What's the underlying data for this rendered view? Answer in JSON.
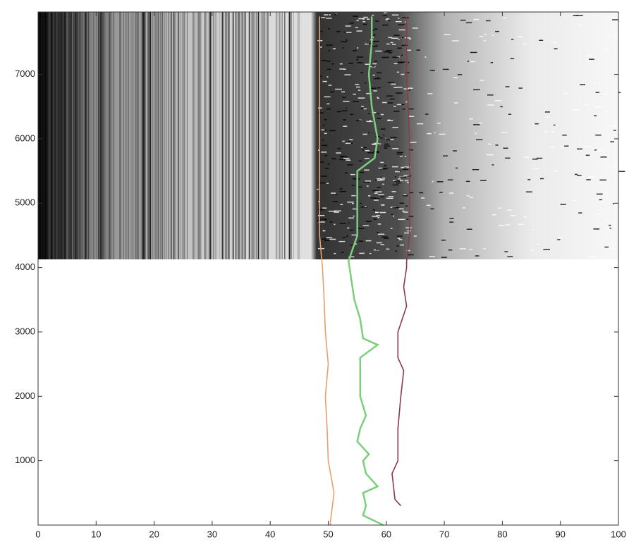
{
  "chart_data": {
    "type": "line",
    "xlim": [
      0,
      100
    ],
    "xticks": [
      0,
      10,
      20,
      30,
      40,
      50,
      60,
      70,
      80,
      90,
      100
    ],
    "ylim": [
      0,
      7970
    ],
    "yticks": [
      1000,
      2000,
      3000,
      4000,
      5000,
      6000,
      7000
    ],
    "series": [
      {
        "color": "#e8a070",
        "x": [
          50.3,
          51,
          50,
          49.8,
          49.5,
          50,
          49.5,
          49.3,
          49,
          48.5,
          48.5,
          48.5,
          48.5,
          48.5
        ],
        "y": [
          0,
          500,
          1000,
          1500,
          2000,
          2500,
          3000,
          3500,
          4000,
          4500,
          5000,
          6000,
          7000,
          7900
        ]
      },
      {
        "color": "#7ccf7c",
        "x": [
          59.5,
          56,
          56.5,
          56,
          58.5,
          56.5,
          56,
          57,
          55,
          55.5,
          56.5,
          55.5,
          55.5,
          55.5,
          58.5,
          56,
          55.5,
          54.5,
          54,
          53.5,
          55,
          55,
          55,
          58,
          58.5,
          57.5,
          57,
          57.5,
          57.5
        ],
        "y": [
          0,
          150,
          300,
          500,
          600,
          800,
          1000,
          1100,
          1300,
          1500,
          1700,
          2000,
          2300,
          2600,
          2800,
          2900,
          3200,
          3500,
          3800,
          4100,
          4500,
          5000,
          5500,
          5700,
          6000,
          6500,
          7000,
          7500,
          7900
        ]
      },
      {
        "color": "#8a3a4a",
        "x": [
          62.5,
          61.5,
          61,
          62,
          62,
          62.5,
          63,
          62,
          62,
          63.5,
          63,
          63.5,
          63.5,
          64,
          64,
          64,
          63.5,
          63.5
        ],
        "y": [
          300,
          400,
          800,
          1000,
          1500,
          2000,
          2400,
          2600,
          3000,
          3400,
          3700,
          4000,
          4100,
          4500,
          5000,
          6000,
          7000,
          7900
        ]
      }
    ]
  }
}
